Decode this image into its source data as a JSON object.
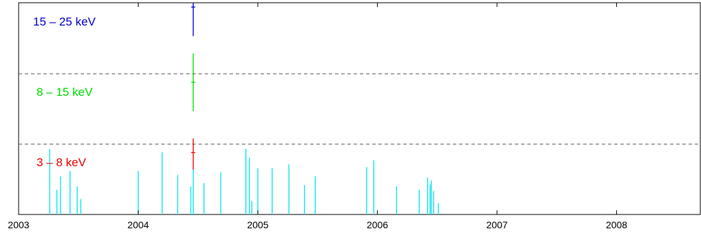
{
  "chart_data": {
    "type": "scatter",
    "title": "",
    "xlabel": "",
    "ylabel": "",
    "xlim": [
      2003.0,
      2008.7
    ],
    "x_ticks": [
      2003,
      2004,
      2005,
      2006,
      2007,
      2008
    ],
    "x_tick_labels": [
      "2003",
      "2004",
      "2005",
      "2006",
      "2007",
      "2008"
    ],
    "grid": false,
    "band_separators": "dashed",
    "bands": [
      {
        "label": "15 – 25 keV",
        "color": "#0000cc",
        "point": {
          "x": 2004.46,
          "y_rel": 0.94,
          "err_low": 0.41,
          "err_high": 0.06
        }
      },
      {
        "label": "8 – 15 keV",
        "color": "#00dd00",
        "point": {
          "x": 2004.46,
          "y_rel": 0.88,
          "err_low": 0.41,
          "err_high": 0.41
        }
      },
      {
        "label": "3 – 8 keV",
        "color": "#ee0000",
        "point": {
          "x": 2004.46,
          "y_rel": 0.88,
          "err_low": 0.24,
          "err_high": 0.2
        }
      }
    ],
    "observations": {
      "color": "#00e5ee",
      "marks": [
        {
          "x": 2003.26,
          "height": 0.98
        },
        {
          "x": 2003.32,
          "height": 0.37
        },
        {
          "x": 2003.35,
          "height": 0.57
        },
        {
          "x": 2003.43,
          "height": 0.65
        },
        {
          "x": 2003.49,
          "height": 0.42
        },
        {
          "x": 2003.52,
          "height": 0.23
        },
        {
          "x": 2004.0,
          "height": 0.65
        },
        {
          "x": 2004.2,
          "height": 0.93
        },
        {
          "x": 2004.33,
          "height": 0.59
        },
        {
          "x": 2004.44,
          "height": 0.42
        },
        {
          "x": 2004.46,
          "height": 0.69
        },
        {
          "x": 2004.55,
          "height": 0.47
        },
        {
          "x": 2004.69,
          "height": 0.63
        },
        {
          "x": 2004.9,
          "height": 0.98
        },
        {
          "x": 2004.93,
          "height": 0.85
        },
        {
          "x": 2004.95,
          "height": 0.2
        },
        {
          "x": 2005.0,
          "height": 0.69
        },
        {
          "x": 2005.12,
          "height": 0.69
        },
        {
          "x": 2005.26,
          "height": 0.75
        },
        {
          "x": 2005.39,
          "height": 0.44
        },
        {
          "x": 2005.48,
          "height": 0.57
        },
        {
          "x": 2005.91,
          "height": 0.71
        },
        {
          "x": 2005.97,
          "height": 0.81
        },
        {
          "x": 2006.16,
          "height": 0.42
        },
        {
          "x": 2006.35,
          "height": 0.37
        },
        {
          "x": 2006.42,
          "height": 0.55
        },
        {
          "x": 2006.44,
          "height": 0.45
        },
        {
          "x": 2006.45,
          "height": 0.51
        },
        {
          "x": 2006.47,
          "height": 0.35
        },
        {
          "x": 2006.51,
          "height": 0.17
        }
      ]
    }
  }
}
